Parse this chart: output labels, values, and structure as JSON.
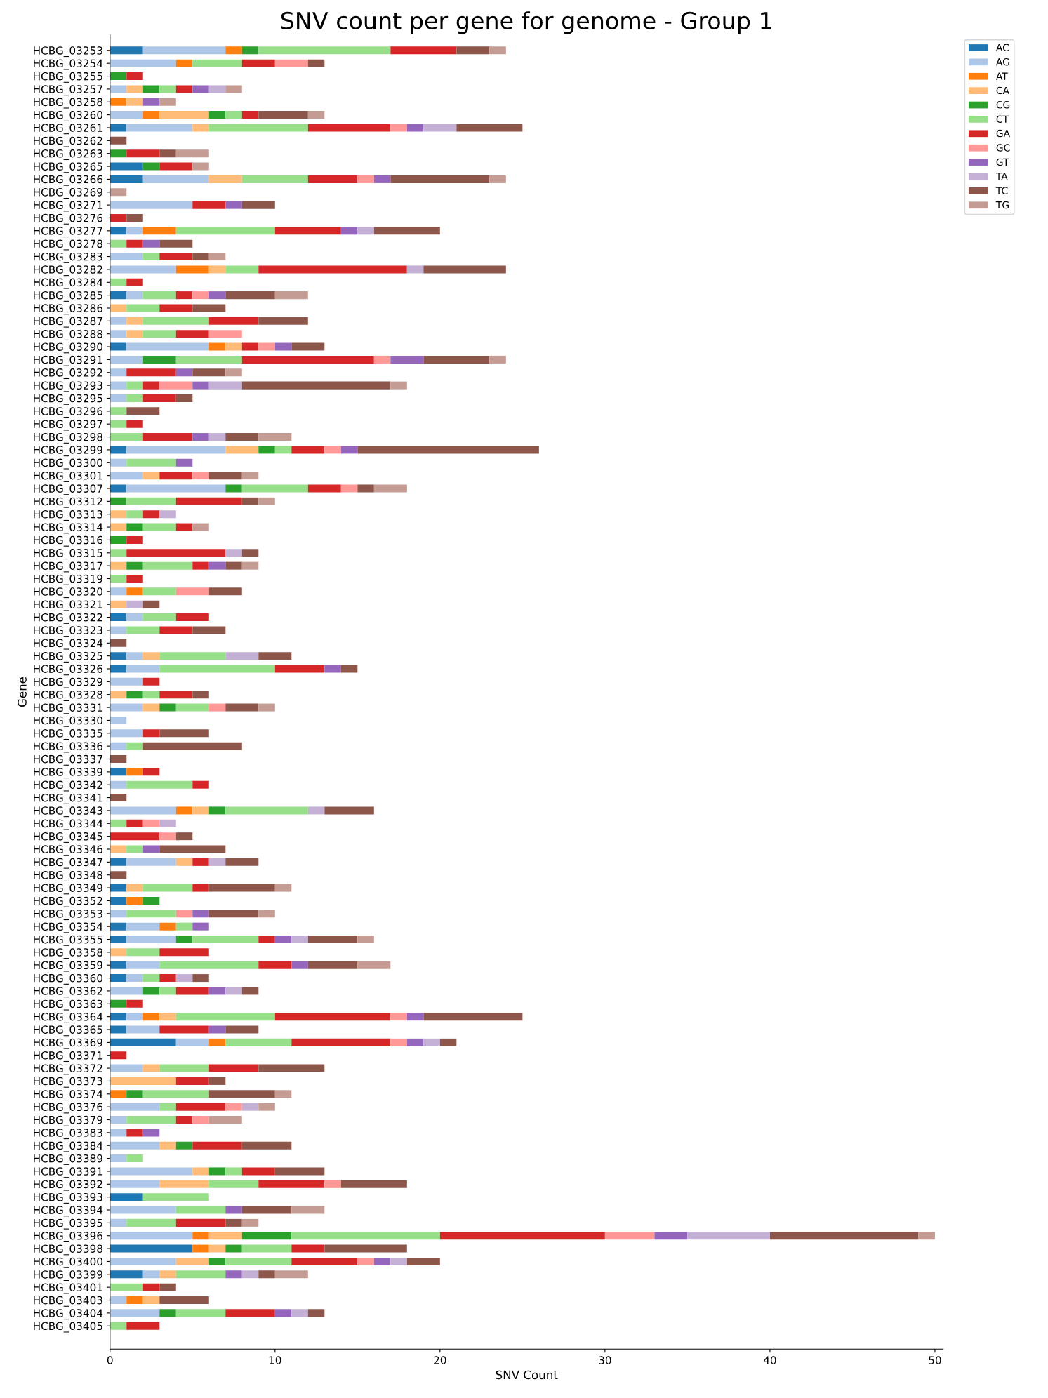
{
  "chart_data": {
    "type": "bar",
    "orientation": "horizontal",
    "stacked": true,
    "title": "SNV count per gene for genome - Group 1",
    "xlabel": "SNV Count",
    "ylabel": "Gene",
    "categories": [
      "HCBG_03253",
      "HCBG_03254",
      "HCBG_03255",
      "HCBG_03257",
      "HCBG_03258",
      "HCBG_03260",
      "HCBG_03261",
      "HCBG_03262",
      "HCBG_03263",
      "HCBG_03265",
      "HCBG_03266",
      "HCBG_03269",
      "HCBG_03271",
      "HCBG_03276",
      "HCBG_03277",
      "HCBG_03278",
      "HCBG_03283",
      "HCBG_03282",
      "HCBG_03284",
      "HCBG_03285",
      "HCBG_03286",
      "HCBG_03287",
      "HCBG_03288",
      "HCBG_03290",
      "HCBG_03291",
      "HCBG_03292",
      "HCBG_03293",
      "HCBG_03295",
      "HCBG_03296",
      "HCBG_03297",
      "HCBG_03298",
      "HCBG_03299",
      "HCBG_03300",
      "HCBG_03301",
      "HCBG_03307",
      "HCBG_03312",
      "HCBG_03313",
      "HCBG_03314",
      "HCBG_03316",
      "HCBG_03315",
      "HCBG_03317",
      "HCBG_03319",
      "HCBG_03320",
      "HCBG_03321",
      "HCBG_03322",
      "HCBG_03323",
      "HCBG_03324",
      "HCBG_03325",
      "HCBG_03326",
      "HCBG_03329",
      "HCBG_03328",
      "HCBG_03331",
      "HCBG_03330",
      "HCBG_03335",
      "HCBG_03336",
      "HCBG_03337",
      "HCBG_03339",
      "HCBG_03342",
      "HCBG_03341",
      "HCBG_03343",
      "HCBG_03344",
      "HCBG_03345",
      "HCBG_03346",
      "HCBG_03347",
      "HCBG_03348",
      "HCBG_03349",
      "HCBG_03352",
      "HCBG_03353",
      "HCBG_03354",
      "HCBG_03355",
      "HCBG_03358",
      "HCBG_03359",
      "HCBG_03360",
      "HCBG_03362",
      "HCBG_03363",
      "HCBG_03364",
      "HCBG_03365",
      "HCBG_03369",
      "HCBG_03371",
      "HCBG_03372",
      "HCBG_03373",
      "HCBG_03374",
      "HCBG_03376",
      "HCBG_03379",
      "HCBG_03383",
      "HCBG_03384",
      "HCBG_03389",
      "HCBG_03391",
      "HCBG_03392",
      "HCBG_03393",
      "HCBG_03394",
      "HCBG_03395",
      "HCBG_03396",
      "HCBG_03398",
      "HCBG_03400",
      "HCBG_03399",
      "HCBG_03401",
      "HCBG_03403",
      "HCBG_03404",
      "HCBG_03405"
    ],
    "series": [
      {
        "name": "AC",
        "color": "#1f77b4",
        "values": [
          2,
          0,
          0,
          0,
          0,
          0,
          1,
          0,
          0,
          2,
          2,
          0,
          0,
          0,
          1,
          0,
          0,
          0,
          0,
          1,
          0,
          0,
          0,
          1,
          0,
          0,
          0,
          0,
          0,
          0,
          0,
          1,
          0,
          0,
          1,
          0,
          0,
          0,
          0,
          0,
          0,
          0,
          0,
          0,
          1,
          0,
          0,
          1,
          1,
          0,
          0,
          0,
          0,
          0,
          0,
          0,
          1,
          0,
          0,
          0,
          0,
          0,
          0,
          1,
          0,
          1,
          1,
          0,
          1,
          1,
          0,
          1,
          1,
          0,
          0,
          1,
          1,
          4,
          0,
          0,
          0,
          0,
          0,
          0,
          0,
          0,
          0,
          0,
          0,
          2,
          0,
          0,
          0,
          5,
          0,
          2,
          0,
          0,
          0,
          0
        ]
      },
      {
        "name": "AG",
        "color": "#aec7e8",
        "values": [
          5,
          4,
          0,
          1,
          0,
          2,
          4,
          0,
          0,
          0,
          4,
          0,
          5,
          0,
          1,
          0,
          2,
          4,
          0,
          1,
          0,
          1,
          1,
          5,
          2,
          1,
          1,
          1,
          0,
          0,
          0,
          6,
          1,
          2,
          6,
          0,
          0,
          0,
          0,
          0,
          0,
          0,
          1,
          0,
          1,
          1,
          0,
          1,
          2,
          2,
          0,
          2,
          1,
          2,
          1,
          0,
          0,
          1,
          0,
          4,
          0,
          0,
          0,
          3,
          0,
          0,
          0,
          1,
          2,
          3,
          0,
          2,
          1,
          2,
          0,
          1,
          2,
          2,
          0,
          2,
          0,
          0,
          3,
          1,
          1,
          3,
          1,
          5,
          3,
          0,
          4,
          1,
          5,
          0,
          4,
          1,
          0,
          1,
          3,
          0
        ]
      },
      {
        "name": "AT",
        "color": "#ff7f0e",
        "values": [
          1,
          1,
          0,
          0,
          1,
          1,
          0,
          0,
          0,
          0,
          0,
          0,
          0,
          0,
          2,
          0,
          0,
          2,
          0,
          0,
          0,
          0,
          0,
          1,
          0,
          0,
          0,
          0,
          0,
          0,
          0,
          0,
          0,
          0,
          0,
          0,
          0,
          0,
          0,
          0,
          0,
          0,
          1,
          0,
          0,
          0,
          0,
          0,
          0,
          0,
          0,
          0,
          0,
          0,
          0,
          0,
          1,
          0,
          0,
          1,
          0,
          0,
          0,
          0,
          0,
          0,
          1,
          0,
          1,
          0,
          0,
          0,
          0,
          0,
          0,
          1,
          0,
          1,
          0,
          0,
          0,
          1,
          0,
          0,
          0,
          0,
          0,
          0,
          0,
          0,
          0,
          0,
          1,
          1,
          0,
          0,
          0,
          1,
          0,
          0
        ]
      },
      {
        "name": "CA",
        "color": "#ffbb78",
        "values": [
          0,
          0,
          0,
          1,
          1,
          3,
          1,
          0,
          0,
          0,
          2,
          0,
          0,
          0,
          0,
          0,
          0,
          1,
          0,
          0,
          1,
          1,
          1,
          1,
          0,
          0,
          0,
          0,
          0,
          0,
          0,
          2,
          0,
          1,
          0,
          0,
          1,
          1,
          0,
          0,
          1,
          0,
          0,
          1,
          0,
          0,
          0,
          1,
          0,
          0,
          1,
          1,
          0,
          0,
          0,
          0,
          0,
          0,
          0,
          1,
          0,
          0,
          1,
          1,
          0,
          1,
          0,
          0,
          0,
          0,
          1,
          0,
          0,
          0,
          0,
          1,
          0,
          0,
          0,
          1,
          4,
          0,
          0,
          0,
          0,
          1,
          0,
          1,
          3,
          0,
          0,
          0,
          2,
          1,
          2,
          1,
          0,
          1,
          0,
          0
        ]
      },
      {
        "name": "CG",
        "color": "#2ca02c",
        "values": [
          1,
          0,
          1,
          1,
          0,
          1,
          0,
          0,
          1,
          1,
          0,
          0,
          0,
          0,
          0,
          0,
          0,
          0,
          0,
          0,
          0,
          0,
          0,
          0,
          2,
          0,
          0,
          0,
          0,
          0,
          0,
          1,
          0,
          0,
          1,
          1,
          0,
          1,
          1,
          0,
          1,
          0,
          0,
          0,
          0,
          0,
          0,
          0,
          0,
          0,
          1,
          1,
          0,
          0,
          0,
          0,
          0,
          0,
          0,
          1,
          0,
          0,
          0,
          0,
          0,
          0,
          1,
          0,
          0,
          1,
          0,
          0,
          0,
          1,
          1,
          0,
          0,
          0,
          0,
          0,
          0,
          1,
          0,
          0,
          0,
          1,
          0,
          1,
          0,
          0,
          0,
          0,
          3,
          1,
          1,
          0,
          0,
          0,
          1,
          0
        ]
      },
      {
        "name": "CT",
        "color": "#98df8a",
        "values": [
          8,
          3,
          0,
          1,
          0,
          1,
          6,
          0,
          0,
          0,
          4,
          0,
          0,
          0,
          6,
          1,
          1,
          2,
          1,
          2,
          2,
          4,
          2,
          0,
          4,
          0,
          1,
          1,
          1,
          1,
          2,
          1,
          3,
          0,
          4,
          3,
          1,
          2,
          0,
          1,
          3,
          1,
          2,
          0,
          2,
          2,
          0,
          4,
          7,
          0,
          1,
          2,
          0,
          0,
          1,
          0,
          0,
          4,
          0,
          5,
          1,
          0,
          1,
          0,
          0,
          3,
          0,
          3,
          1,
          4,
          2,
          6,
          1,
          1,
          0,
          6,
          0,
          4,
          0,
          3,
          0,
          4,
          1,
          3,
          0,
          0,
          1,
          1,
          3,
          4,
          3,
          3,
          9,
          3,
          4,
          3,
          2,
          0,
          3,
          1
        ]
      },
      {
        "name": "GA",
        "color": "#d62728",
        "values": [
          4,
          2,
          1,
          1,
          0,
          1,
          5,
          0,
          2,
          2,
          3,
          0,
          2,
          1,
          4,
          1,
          2,
          9,
          1,
          1,
          2,
          3,
          2,
          1,
          8,
          3,
          1,
          2,
          0,
          1,
          3,
          2,
          0,
          2,
          2,
          4,
          1,
          1,
          1,
          6,
          1,
          1,
          0,
          0,
          2,
          2,
          0,
          0,
          3,
          1,
          2,
          0,
          0,
          1,
          0,
          0,
          1,
          1,
          0,
          0,
          1,
          3,
          0,
          1,
          0,
          1,
          0,
          0,
          0,
          1,
          3,
          2,
          1,
          2,
          1,
          7,
          3,
          6,
          1,
          3,
          2,
          0,
          3,
          1,
          1,
          3,
          0,
          2,
          4,
          0,
          0,
          3,
          10,
          2,
          4,
          0,
          1,
          0,
          3,
          2
        ]
      },
      {
        "name": "GC",
        "color": "#ff9896",
        "values": [
          0,
          2,
          0,
          0,
          0,
          0,
          1,
          0,
          0,
          0,
          1,
          0,
          0,
          0,
          0,
          0,
          0,
          0,
          0,
          1,
          0,
          0,
          2,
          1,
          1,
          0,
          2,
          0,
          0,
          0,
          0,
          1,
          0,
          1,
          1,
          0,
          0,
          0,
          0,
          0,
          0,
          0,
          2,
          0,
          0,
          0,
          0,
          0,
          0,
          0,
          0,
          1,
          0,
          0,
          0,
          0,
          0,
          0,
          0,
          0,
          1,
          1,
          0,
          0,
          0,
          0,
          0,
          1,
          0,
          0,
          0,
          0,
          0,
          0,
          0,
          1,
          0,
          1,
          0,
          0,
          0,
          0,
          1,
          1,
          0,
          0,
          0,
          0,
          1,
          0,
          0,
          0,
          3,
          0,
          1,
          0,
          0,
          0,
          0,
          0
        ]
      },
      {
        "name": "GT",
        "color": "#9467bd",
        "values": [
          0,
          0,
          0,
          1,
          1,
          0,
          1,
          0,
          0,
          0,
          1,
          0,
          1,
          0,
          1,
          1,
          0,
          0,
          0,
          1,
          0,
          0,
          0,
          1,
          2,
          1,
          1,
          0,
          0,
          0,
          1,
          1,
          1,
          0,
          0,
          0,
          0,
          0,
          0,
          0,
          1,
          0,
          0,
          0,
          0,
          0,
          0,
          0,
          1,
          0,
          0,
          0,
          0,
          0,
          0,
          0,
          0,
          0,
          0,
          0,
          0,
          0,
          1,
          0,
          0,
          0,
          0,
          1,
          1,
          1,
          0,
          1,
          0,
          1,
          0,
          1,
          1,
          1,
          0,
          0,
          0,
          0,
          0,
          0,
          1,
          0,
          0,
          0,
          0,
          0,
          1,
          0,
          2,
          0,
          1,
          1,
          0,
          0,
          1,
          0
        ]
      },
      {
        "name": "TA",
        "color": "#c5b0d5",
        "values": [
          0,
          0,
          0,
          1,
          0,
          0,
          2,
          0,
          0,
          0,
          0,
          0,
          0,
          0,
          1,
          0,
          0,
          1,
          0,
          0,
          0,
          0,
          0,
          0,
          0,
          0,
          2,
          0,
          0,
          0,
          1,
          0,
          0,
          0,
          0,
          0,
          1,
          0,
          0,
          1,
          0,
          0,
          0,
          1,
          0,
          0,
          0,
          2,
          0,
          0,
          0,
          0,
          0,
          0,
          0,
          0,
          0,
          0,
          0,
          1,
          1,
          0,
          0,
          1,
          0,
          0,
          0,
          0,
          0,
          1,
          0,
          0,
          1,
          1,
          0,
          0,
          0,
          1,
          0,
          0,
          0,
          0,
          1,
          0,
          0,
          0,
          0,
          0,
          0,
          0,
          0,
          0,
          5,
          0,
          1,
          1,
          0,
          0,
          1,
          0
        ]
      },
      {
        "name": "TC",
        "color": "#8c564b",
        "values": [
          2,
          1,
          0,
          0,
          0,
          3,
          4,
          1,
          1,
          0,
          6,
          0,
          2,
          1,
          4,
          2,
          1,
          5,
          0,
          3,
          2,
          3,
          0,
          2,
          4,
          2,
          9,
          1,
          2,
          0,
          2,
          11,
          0,
          2,
          1,
          1,
          0,
          0,
          0,
          1,
          1,
          0,
          2,
          1,
          0,
          2,
          1,
          2,
          1,
          0,
          1,
          2,
          0,
          3,
          6,
          1,
          0,
          0,
          1,
          3,
          0,
          1,
          4,
          2,
          1,
          4,
          0,
          3,
          0,
          3,
          0,
          3,
          1,
          1,
          0,
          6,
          2,
          1,
          0,
          4,
          1,
          4,
          0,
          0,
          0,
          3,
          0,
          3,
          4,
          0,
          3,
          1,
          9,
          5,
          2,
          1,
          1,
          3,
          1,
          0
        ]
      },
      {
        "name": "TG",
        "color": "#c49c94",
        "values": [
          1,
          0,
          0,
          1,
          1,
          1,
          0,
          0,
          2,
          1,
          1,
          1,
          0,
          0,
          0,
          0,
          1,
          0,
          0,
          2,
          0,
          0,
          0,
          0,
          1,
          1,
          1,
          0,
          0,
          0,
          2,
          0,
          0,
          1,
          2,
          1,
          0,
          1,
          0,
          0,
          1,
          0,
          0,
          0,
          0,
          0,
          0,
          0,
          0,
          0,
          0,
          1,
          0,
          0,
          0,
          0,
          0,
          0,
          0,
          0,
          0,
          0,
          0,
          0,
          0,
          1,
          0,
          1,
          0,
          1,
          0,
          2,
          0,
          0,
          0,
          0,
          0,
          0,
          0,
          0,
          0,
          1,
          1,
          2,
          0,
          0,
          0,
          0,
          0,
          0,
          2,
          1,
          1,
          0,
          0,
          2,
          0,
          0,
          0,
          0
        ]
      }
    ],
    "xlim": [
      0,
      50.5
    ],
    "xticks": [
      0,
      10,
      20,
      30,
      40,
      50
    ],
    "grid": false,
    "legend": "top right"
  }
}
